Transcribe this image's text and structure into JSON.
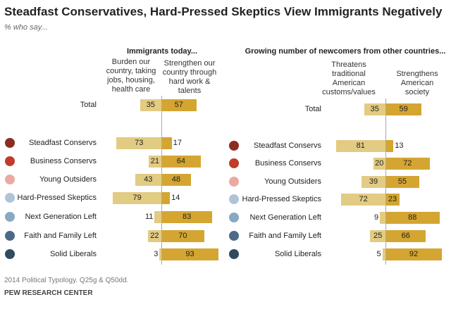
{
  "title": "Steadfast Conservatives, Hard-Pressed Skeptics View Immigrants Negatively",
  "subtitle": "% who say...",
  "note": "2014 Political Typology. Q25g & Q50dd.",
  "source": "PEW RESEARCH CENTER",
  "colors": {
    "negative": "#e2cb82",
    "positive": "#d4a531"
  },
  "chart_data": [
    {
      "type": "bar",
      "title": "Immigrants today...",
      "categories": [
        "Total",
        "Steadfast Conservs",
        "Business Conservs",
        "Young Outsiders",
        "Hard-Pressed Skeptics",
        "Next Generation Left",
        "Faith and Family Left",
        "Solid Liberals"
      ],
      "category_colors": [
        null,
        "#8b2d22",
        "#c23b2a",
        "#eba9a0",
        "#aec4d8",
        "#89a8c2",
        "#4b6a85",
        "#314a5e"
      ],
      "series": [
        {
          "name": "Burden our country, taking jobs, housing, health care",
          "values": [
            35,
            73,
            21,
            43,
            79,
            11,
            22,
            3
          ]
        },
        {
          "name": "Strengthen our country through hard work & talents",
          "values": [
            57,
            17,
            64,
            48,
            14,
            83,
            70,
            93
          ]
        }
      ]
    },
    {
      "type": "bar",
      "title": "Growing number of newcomers from other countries...",
      "categories": [
        "Total",
        "Steadfast Conservs",
        "Business Conservs",
        "Young Outsiders",
        "Hard-Pressed Skeptics",
        "Next Generation Left",
        "Faith and Family Left",
        "Solid Liberals"
      ],
      "category_colors": [
        null,
        "#8b2d22",
        "#c23b2a",
        "#eba9a0",
        "#aec4d8",
        "#89a8c2",
        "#4b6a85",
        "#314a5e"
      ],
      "series": [
        {
          "name": "Threatens traditional American customs/values",
          "values": [
            35,
            81,
            20,
            39,
            72,
            9,
            25,
            5
          ]
        },
        {
          "name": "Strengthens American society",
          "values": [
            59,
            13,
            72,
            55,
            23,
            88,
            66,
            92
          ]
        }
      ]
    }
  ]
}
